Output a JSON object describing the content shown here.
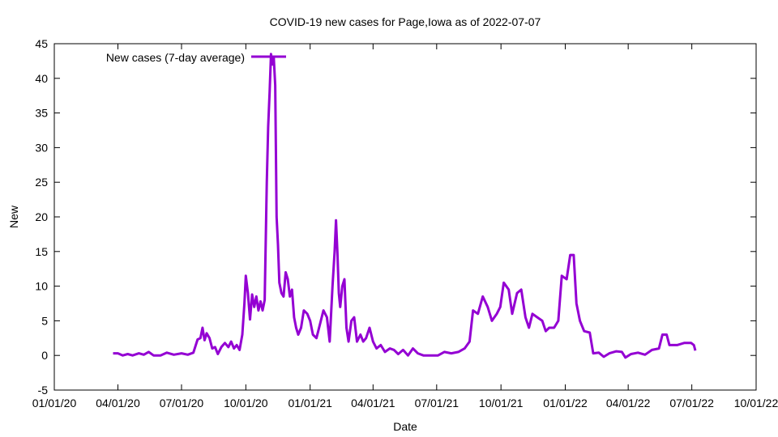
{
  "chart_data": {
    "type": "line",
    "title": "COVID-19 new cases for Page,Iowa as of 2022-07-07",
    "xlabel": "Date",
    "ylabel": "New",
    "x_range": [
      "2020-01-01",
      "2022-10-01"
    ],
    "ylim": [
      -5,
      45
    ],
    "y_ticks": [
      -5,
      0,
      5,
      10,
      15,
      20,
      25,
      30,
      35,
      40,
      45
    ],
    "x_ticks": [
      {
        "date": "2020-01-01",
        "label": "01/01/20"
      },
      {
        "date": "2020-04-01",
        "label": "04/01/20"
      },
      {
        "date": "2020-07-01",
        "label": "07/01/20"
      },
      {
        "date": "2020-10-01",
        "label": "10/01/20"
      },
      {
        "date": "2021-01-01",
        "label": "01/01/21"
      },
      {
        "date": "2021-04-01",
        "label": "04/01/21"
      },
      {
        "date": "2021-07-01",
        "label": "07/01/21"
      },
      {
        "date": "2021-10-01",
        "label": "10/01/21"
      },
      {
        "date": "2022-01-01",
        "label": "01/01/22"
      },
      {
        "date": "2022-04-01",
        "label": "04/01/22"
      },
      {
        "date": "2022-07-01",
        "label": "07/01/22"
      },
      {
        "date": "2022-10-01",
        "label": "10/01/22"
      }
    ],
    "legend_position": "top-left",
    "grid": false,
    "series": [
      {
        "name": "New cases (7-day average)",
        "color": "#9400d3",
        "points": [
          [
            "2020-03-25",
            0.3
          ],
          [
            "2020-04-01",
            0.3
          ],
          [
            "2020-04-08",
            0.0
          ],
          [
            "2020-04-15",
            0.2
          ],
          [
            "2020-04-22",
            0.0
          ],
          [
            "2020-05-01",
            0.3
          ],
          [
            "2020-05-08",
            0.1
          ],
          [
            "2020-05-15",
            0.5
          ],
          [
            "2020-05-22",
            0.0
          ],
          [
            "2020-06-01",
            0.0
          ],
          [
            "2020-06-10",
            0.4
          ],
          [
            "2020-06-20",
            0.1
          ],
          [
            "2020-07-01",
            0.3
          ],
          [
            "2020-07-10",
            0.1
          ],
          [
            "2020-07-18",
            0.4
          ],
          [
            "2020-07-24",
            2.3
          ],
          [
            "2020-07-28",
            2.5
          ],
          [
            "2020-07-31",
            4.0
          ],
          [
            "2020-08-03",
            2.2
          ],
          [
            "2020-08-06",
            3.2
          ],
          [
            "2020-08-10",
            2.5
          ],
          [
            "2020-08-14",
            1.0
          ],
          [
            "2020-08-18",
            1.2
          ],
          [
            "2020-08-22",
            0.2
          ],
          [
            "2020-08-27",
            1.2
          ],
          [
            "2020-09-01",
            1.8
          ],
          [
            "2020-09-06",
            1.2
          ],
          [
            "2020-09-10",
            2.0
          ],
          [
            "2020-09-14",
            1.0
          ],
          [
            "2020-09-18",
            1.5
          ],
          [
            "2020-09-22",
            0.8
          ],
          [
            "2020-09-26",
            3.0
          ],
          [
            "2020-09-29",
            7.5
          ],
          [
            "2020-10-01",
            11.5
          ],
          [
            "2020-10-04",
            9.0
          ],
          [
            "2020-10-07",
            5.2
          ],
          [
            "2020-10-10",
            8.8
          ],
          [
            "2020-10-13",
            7.0
          ],
          [
            "2020-10-16",
            8.5
          ],
          [
            "2020-10-19",
            6.5
          ],
          [
            "2020-10-22",
            7.8
          ],
          [
            "2020-10-25",
            6.5
          ],
          [
            "2020-10-28",
            8.0
          ],
          [
            "2020-10-31",
            25.0
          ],
          [
            "2020-11-02",
            33.0
          ],
          [
            "2020-11-04",
            38.0
          ],
          [
            "2020-11-06",
            43.5
          ],
          [
            "2020-11-08",
            42.0
          ],
          [
            "2020-11-10",
            43.0
          ],
          [
            "2020-11-12",
            39.0
          ],
          [
            "2020-11-14",
            20.0
          ],
          [
            "2020-11-16",
            16.0
          ],
          [
            "2020-11-18",
            10.5
          ],
          [
            "2020-11-21",
            9.0
          ],
          [
            "2020-11-24",
            8.5
          ],
          [
            "2020-11-27",
            12.0
          ],
          [
            "2020-11-30",
            11.0
          ],
          [
            "2020-12-03",
            8.5
          ],
          [
            "2020-12-06",
            9.5
          ],
          [
            "2020-12-09",
            5.5
          ],
          [
            "2020-12-12",
            4.0
          ],
          [
            "2020-12-15",
            3.0
          ],
          [
            "2020-12-19",
            4.0
          ],
          [
            "2020-12-23",
            6.5
          ],
          [
            "2020-12-28",
            6.0
          ],
          [
            "2021-01-01",
            5.0
          ],
          [
            "2021-01-05",
            3.0
          ],
          [
            "2021-01-10",
            2.5
          ],
          [
            "2021-01-15",
            4.5
          ],
          [
            "2021-01-20",
            6.5
          ],
          [
            "2021-01-25",
            5.5
          ],
          [
            "2021-01-29",
            2.0
          ],
          [
            "2021-02-02",
            10.0
          ],
          [
            "2021-02-05",
            15.0
          ],
          [
            "2021-02-07",
            19.5
          ],
          [
            "2021-02-09",
            15.0
          ],
          [
            "2021-02-11",
            9.0
          ],
          [
            "2021-02-13",
            7.0
          ],
          [
            "2021-02-16",
            10.0
          ],
          [
            "2021-02-19",
            11.0
          ],
          [
            "2021-02-22",
            4.0
          ],
          [
            "2021-02-25",
            2.0
          ],
          [
            "2021-03-01",
            5.0
          ],
          [
            "2021-03-05",
            5.5
          ],
          [
            "2021-03-09",
            2.0
          ],
          [
            "2021-03-14",
            3.0
          ],
          [
            "2021-03-18",
            2.0
          ],
          [
            "2021-03-22",
            2.5
          ],
          [
            "2021-03-27",
            4.0
          ],
          [
            "2021-04-01",
            2.0
          ],
          [
            "2021-04-06",
            1.0
          ],
          [
            "2021-04-12",
            1.5
          ],
          [
            "2021-04-18",
            0.5
          ],
          [
            "2021-04-25",
            1.0
          ],
          [
            "2021-05-01",
            0.8
          ],
          [
            "2021-05-07",
            0.2
          ],
          [
            "2021-05-14",
            0.8
          ],
          [
            "2021-05-21",
            0.0
          ],
          [
            "2021-05-28",
            1.0
          ],
          [
            "2021-06-04",
            0.3
          ],
          [
            "2021-06-12",
            0.0
          ],
          [
            "2021-06-22",
            0.0
          ],
          [
            "2021-07-03",
            0.0
          ],
          [
            "2021-07-12",
            0.5
          ],
          [
            "2021-07-22",
            0.3
          ],
          [
            "2021-08-01",
            0.5
          ],
          [
            "2021-08-10",
            1.0
          ],
          [
            "2021-08-17",
            2.0
          ],
          [
            "2021-08-22",
            6.5
          ],
          [
            "2021-08-29",
            6.0
          ],
          [
            "2021-09-05",
            8.5
          ],
          [
            "2021-09-12",
            7.0
          ],
          [
            "2021-09-18",
            5.0
          ],
          [
            "2021-09-25",
            6.0
          ],
          [
            "2021-09-30",
            7.0
          ],
          [
            "2021-10-05",
            10.5
          ],
          [
            "2021-10-12",
            9.5
          ],
          [
            "2021-10-17",
            6.0
          ],
          [
            "2021-10-24",
            9.0
          ],
          [
            "2021-10-30",
            9.5
          ],
          [
            "2021-11-05",
            5.5
          ],
          [
            "2021-11-10",
            4.0
          ],
          [
            "2021-11-15",
            6.0
          ],
          [
            "2021-11-22",
            5.5
          ],
          [
            "2021-11-29",
            5.0
          ],
          [
            "2021-12-04",
            3.5
          ],
          [
            "2021-12-09",
            4.0
          ],
          [
            "2021-12-16",
            4.0
          ],
          [
            "2021-12-22",
            5.0
          ],
          [
            "2021-12-27",
            11.5
          ],
          [
            "2022-01-03",
            11.0
          ],
          [
            "2022-01-08",
            14.5
          ],
          [
            "2022-01-13",
            14.5
          ],
          [
            "2022-01-17",
            7.5
          ],
          [
            "2022-01-22",
            5.0
          ],
          [
            "2022-01-28",
            3.5
          ],
          [
            "2022-02-05",
            3.3
          ],
          [
            "2022-02-10",
            0.3
          ],
          [
            "2022-02-18",
            0.4
          ],
          [
            "2022-02-25",
            -0.2
          ],
          [
            "2022-03-05",
            0.3
          ],
          [
            "2022-03-15",
            0.6
          ],
          [
            "2022-03-23",
            0.5
          ],
          [
            "2022-03-28",
            -0.3
          ],
          [
            "2022-04-05",
            0.2
          ],
          [
            "2022-04-15",
            0.4
          ],
          [
            "2022-04-25",
            0.1
          ],
          [
            "2022-05-05",
            0.8
          ],
          [
            "2022-05-15",
            1.0
          ],
          [
            "2022-05-20",
            3.0
          ],
          [
            "2022-05-26",
            3.0
          ],
          [
            "2022-05-30",
            1.5
          ],
          [
            "2022-06-10",
            1.5
          ],
          [
            "2022-06-20",
            1.8
          ],
          [
            "2022-06-30",
            1.8
          ],
          [
            "2022-07-04",
            1.5
          ],
          [
            "2022-07-06",
            0.7
          ]
        ]
      }
    ]
  }
}
